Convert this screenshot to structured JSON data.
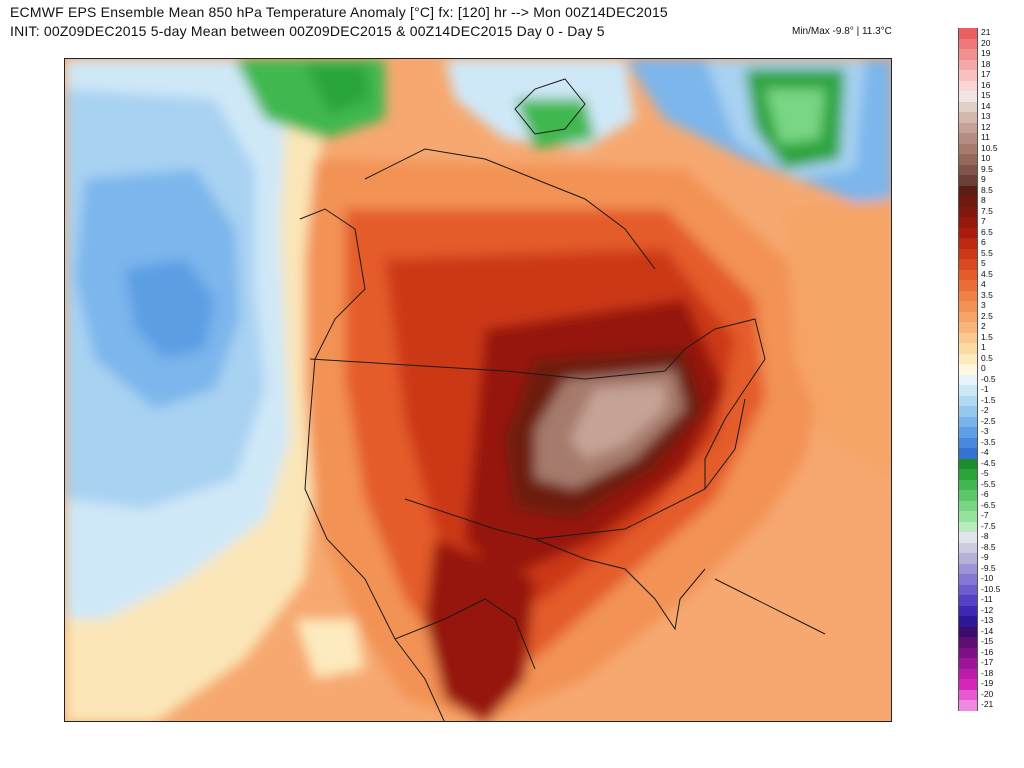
{
  "header": {
    "line1": "ECMWF EPS Ensemble Mean 850 hPa Temperature Anomaly [°C] fx: [120] hr --> Mon 00Z14DEC2015",
    "line2": "INIT: 00Z09DEC2015 5-day Mean between 00Z09DEC2015 & 00Z14DEC2015    Day 0 - Day 5",
    "minmax": "Min/Max -9.8° | 11.3°C"
  },
  "colorbar": {
    "levels": [
      {
        "label": "21",
        "color": "#e86060"
      },
      {
        "label": "20",
        "color": "#ee7878"
      },
      {
        "label": "19",
        "color": "#f29090"
      },
      {
        "label": "18",
        "color": "#f5a8a8"
      },
      {
        "label": "17",
        "color": "#f8c0c0"
      },
      {
        "label": "16",
        "color": "#fad6d6"
      },
      {
        "label": "15",
        "color": "#f0e6e2"
      },
      {
        "label": "14",
        "color": "#e2cfc8"
      },
      {
        "label": "13",
        "color": "#d4b8ae"
      },
      {
        "label": "12",
        "color": "#c6a296"
      },
      {
        "label": "11",
        "color": "#b68c80"
      },
      {
        "label": "10.5",
        "color": "#a67a6c"
      },
      {
        "label": "10",
        "color": "#94685a"
      },
      {
        "label": "9.5",
        "color": "#80544a"
      },
      {
        "label": "9",
        "color": "#6c4038"
      },
      {
        "label": "8.5",
        "color": "#5a1e14"
      },
      {
        "label": "8",
        "color": "#6e1a0e"
      },
      {
        "label": "7.5",
        "color": "#82180c"
      },
      {
        "label": "7",
        "color": "#96180c"
      },
      {
        "label": "6.5",
        "color": "#aa1c0e"
      },
      {
        "label": "6",
        "color": "#bc2812"
      },
      {
        "label": "5.5",
        "color": "#cc3818"
      },
      {
        "label": "5",
        "color": "#da4a20"
      },
      {
        "label": "4.5",
        "color": "#e45c2a"
      },
      {
        "label": "4",
        "color": "#ec6e36"
      },
      {
        "label": "3.5",
        "color": "#f08044"
      },
      {
        "label": "3",
        "color": "#f39254"
      },
      {
        "label": "2.5",
        "color": "#f6a466"
      },
      {
        "label": "2",
        "color": "#f8b67a"
      },
      {
        "label": "1.5",
        "color": "#fac890"
      },
      {
        "label": "1",
        "color": "#fcdaa6"
      },
      {
        "label": "0.5",
        "color": "#fdeabe"
      },
      {
        "label": "0",
        "color": "#fff8dc"
      },
      {
        "label": "-0.5",
        "color": "#e6f4fc"
      },
      {
        "label": "-1",
        "color": "#cce8f8"
      },
      {
        "label": "-1.5",
        "color": "#b0daf4"
      },
      {
        "label": "-2",
        "color": "#94c8ef"
      },
      {
        "label": "-2.5",
        "color": "#78b4ea"
      },
      {
        "label": "-3",
        "color": "#5e9ee4"
      },
      {
        "label": "-3.5",
        "color": "#4888dc"
      },
      {
        "label": "-4",
        "color": "#3472d4"
      },
      {
        "label": "-4.5",
        "color": "#1e8c2c"
      },
      {
        "label": "-5",
        "color": "#2ca43c"
      },
      {
        "label": "-5.5",
        "color": "#40b850"
      },
      {
        "label": "-6",
        "color": "#5ac868"
      },
      {
        "label": "-6.5",
        "color": "#78d684"
      },
      {
        "label": "-7",
        "color": "#98e2a0"
      },
      {
        "label": "-7.5",
        "color": "#b8ecbc"
      },
      {
        "label": "-8",
        "color": "#e4e4ec"
      },
      {
        "label": "-8.5",
        "color": "#ccccde"
      },
      {
        "label": "-9",
        "color": "#b4b0d8"
      },
      {
        "label": "-9.5",
        "color": "#9c94d6"
      },
      {
        "label": "-10",
        "color": "#8478d2"
      },
      {
        "label": "-10.5",
        "color": "#6c5cce"
      },
      {
        "label": "-11",
        "color": "#5440c4"
      },
      {
        "label": "-12",
        "color": "#3c28b2"
      },
      {
        "label": "-13",
        "color": "#2c1896"
      },
      {
        "label": "-14",
        "color": "#3c0c6c"
      },
      {
        "label": "-15",
        "color": "#5e0e74"
      },
      {
        "label": "-16",
        "color": "#7e1086"
      },
      {
        "label": "-17",
        "color": "#9e1496"
      },
      {
        "label": "-18",
        "color": "#bc1aa8"
      },
      {
        "label": "-19",
        "color": "#d626bc"
      },
      {
        "label": "-20",
        "color": "#e858d0"
      },
      {
        "label": "-21",
        "color": "#f08ae0"
      }
    ]
  }
}
